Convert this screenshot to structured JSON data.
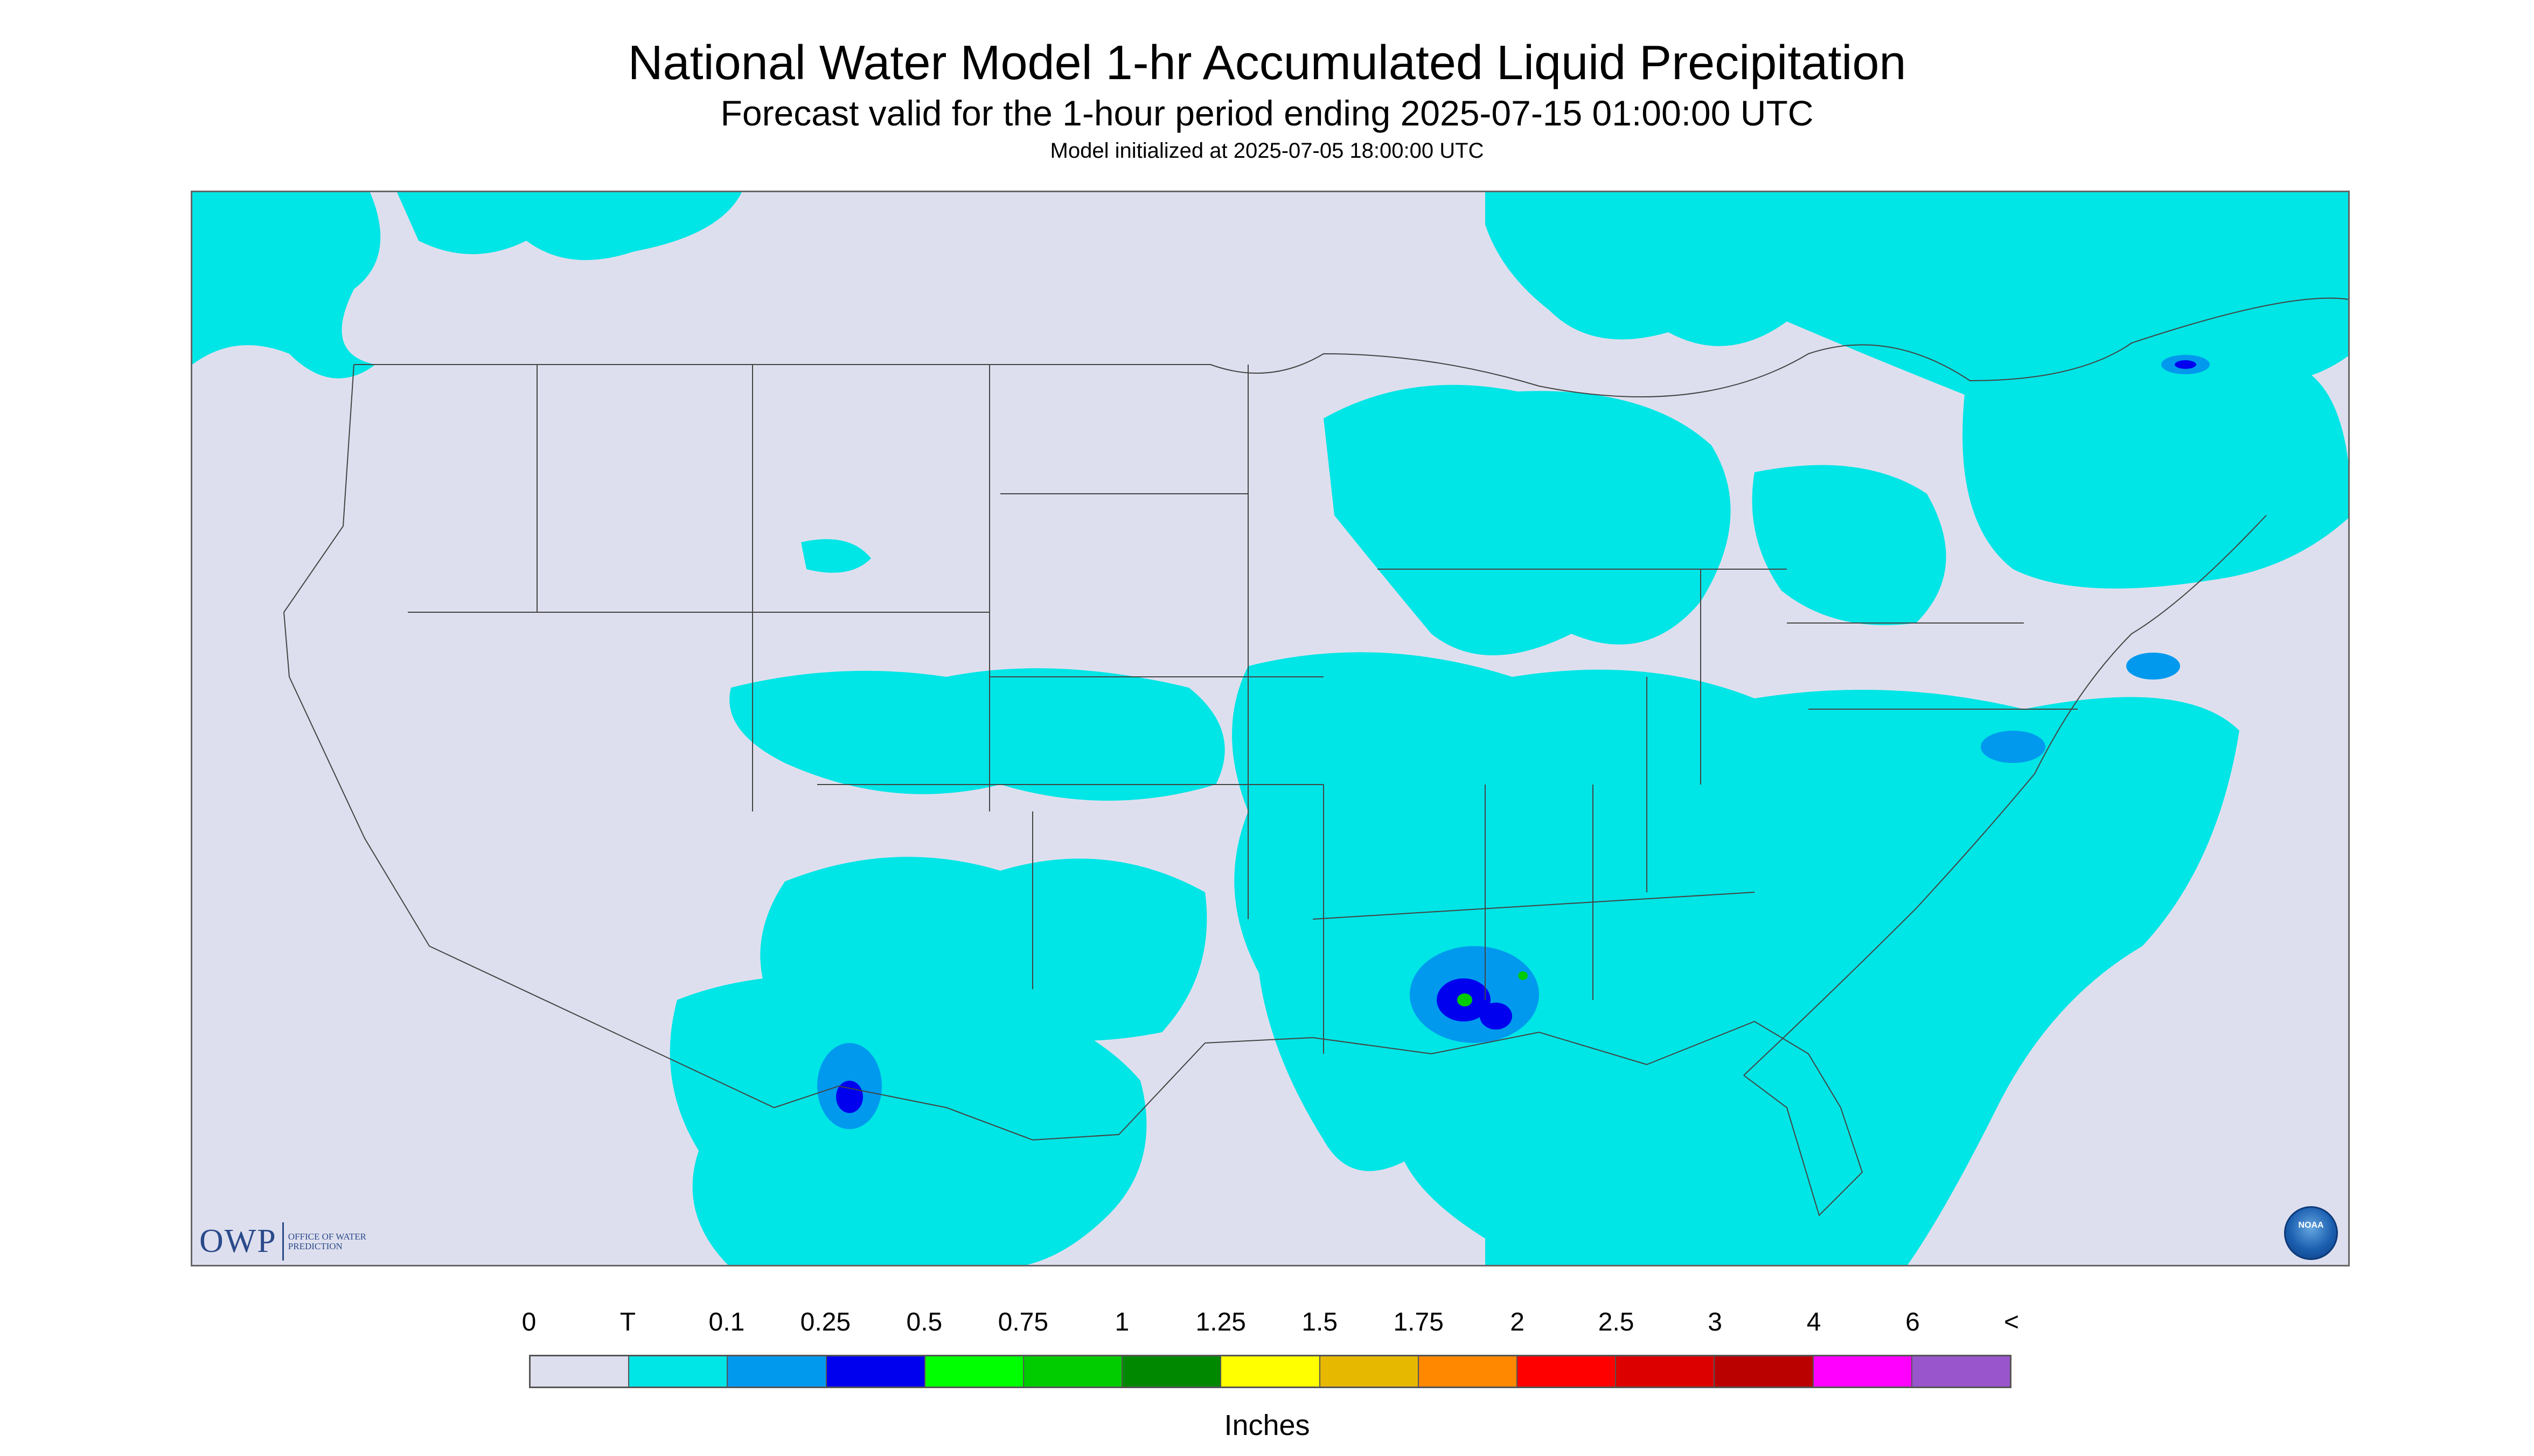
{
  "header": {
    "title": "National Water Model 1-hr Accumulated Liquid Precipitation",
    "subtitle": "Forecast valid for the 1-hour period ending 2025-07-15 01:00:00 UTC",
    "init": "Model initialized at 2025-07-05 18:00:00 UTC"
  },
  "logos": {
    "owp_big": "OWP",
    "owp_small": "OFFICE OF WATER PREDICTION",
    "noaa": "NOAA"
  },
  "legend": {
    "ticks": [
      "0",
      "T",
      "0.1",
      "0.25",
      "0.5",
      "0.75",
      "1",
      "1.25",
      "1.5",
      "1.75",
      "2",
      "2.5",
      "3",
      "4",
      "6",
      "<"
    ],
    "colors": [
      "#dedfee",
      "#00e5e5",
      "#0099ee",
      "#0000ee",
      "#00ff00",
      "#00cc00",
      "#008800",
      "#ffff00",
      "#e6b800",
      "#ff8800",
      "#ff0000",
      "#dd0000",
      "#bb0000",
      "#ff00ff",
      "#9955cc"
    ],
    "units": "Inches"
  },
  "map": {
    "background_color": "#dedfee",
    "precip_color_trace": "#00e5e5",
    "precip_color_light": "#0099ee",
    "precip_color_moderate": "#0000ee",
    "precip_color_heavy": "#00cc00",
    "border_color": "#444444"
  }
}
